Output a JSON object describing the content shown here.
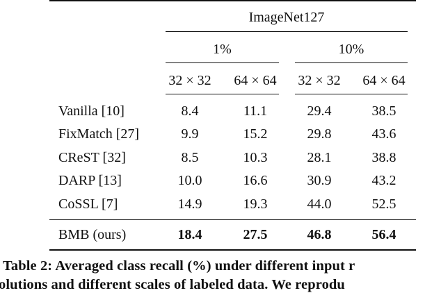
{
  "table": {
    "group_header": "ImageNet127",
    "scale_headers": [
      "1%",
      "10%"
    ],
    "resolution_headers": [
      "32 × 32",
      "64 × 64",
      "32 × 32",
      "64 × 64"
    ],
    "rows": [
      {
        "method": "Vanilla [10]",
        "values": [
          "8.4",
          "11.1",
          "29.4",
          "38.5"
        ]
      },
      {
        "method": "FixMatch [27]",
        "values": [
          "9.9",
          "15.2",
          "29.8",
          "43.6"
        ]
      },
      {
        "method": "CReST [32]",
        "values": [
          "8.5",
          "10.3",
          "28.1",
          "38.8"
        ]
      },
      {
        "method": "DARP [13]",
        "values": [
          "10.0",
          "16.6",
          "30.9",
          "43.2"
        ]
      },
      {
        "method": "CoSSL [7]",
        "values": [
          "14.9",
          "19.3",
          "44.0",
          "52.5"
        ]
      }
    ],
    "ours": {
      "method": "BMB (ours)",
      "values": [
        "18.4",
        "27.5",
        "46.8",
        "56.4"
      ]
    }
  },
  "caption": {
    "line1": "Table 2: Averaged class recall (%) under different input r",
    "line2": "olutions and different scales of labeled data. We reprodu"
  }
}
